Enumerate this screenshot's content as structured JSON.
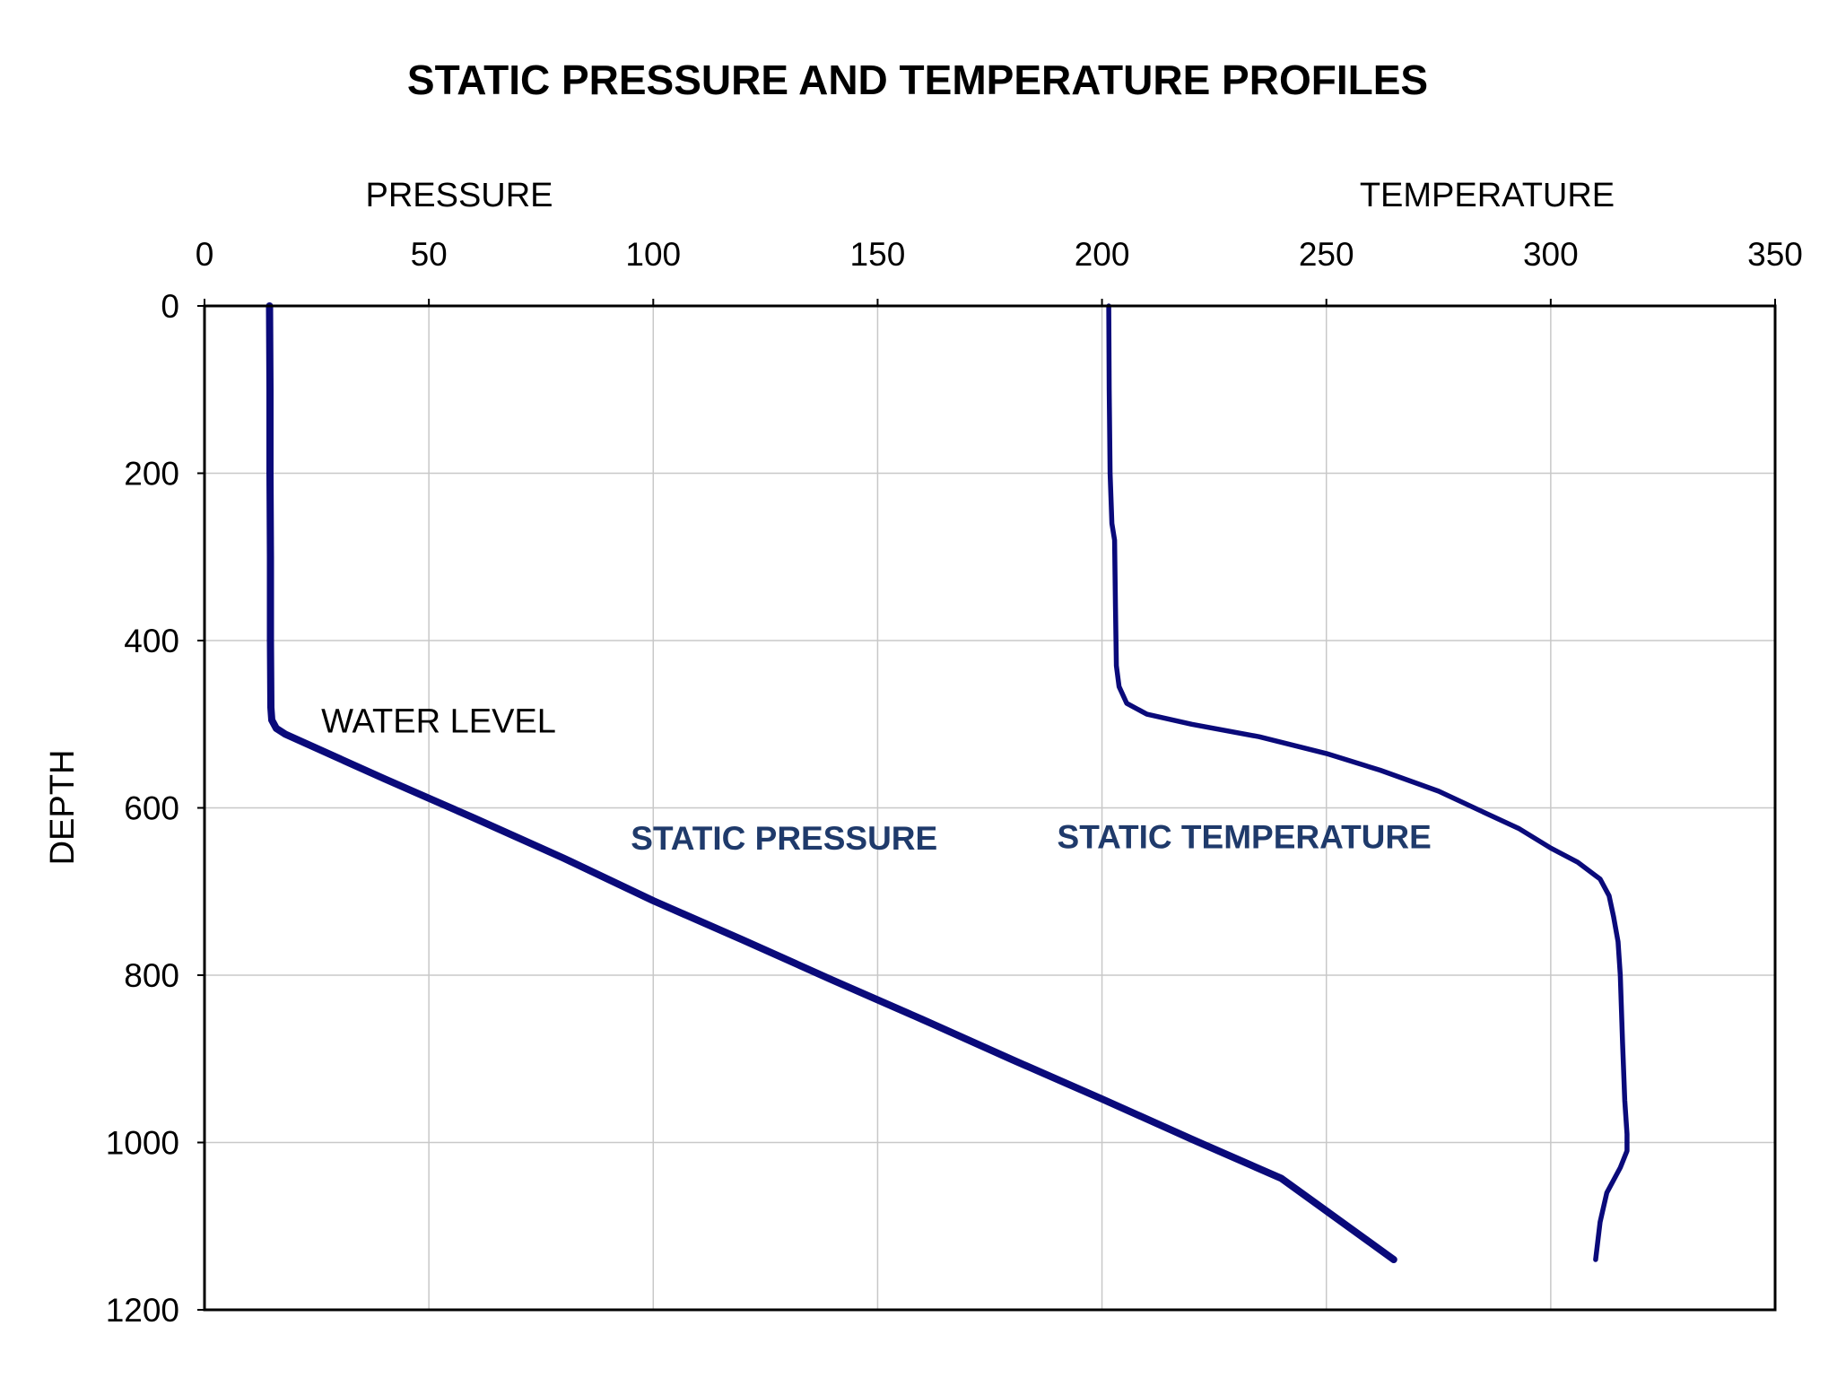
{
  "chart_data": {
    "type": "line",
    "title": "STATIC PRESSURE AND TEMPERATURE PROFILES",
    "xlabel_left": "PRESSURE",
    "xlabel_right": "TEMPERATURE",
    "ylabel": "DEPTH",
    "xlim": [
      0,
      350
    ],
    "ylim": [
      0,
      1200
    ],
    "y_inverted": true,
    "x_axis_position": "top",
    "x_ticks": [
      "0",
      "50",
      "100",
      "150",
      "200",
      "250",
      "300",
      "350"
    ],
    "x_tick_values": [
      0,
      50,
      100,
      150,
      200,
      250,
      300,
      350
    ],
    "y_ticks": [
      "0",
      "200",
      "400",
      "600",
      "800",
      "1000",
      "1200"
    ],
    "y_tick_values": [
      0,
      200,
      400,
      600,
      800,
      1000,
      1200
    ],
    "grid": true,
    "annotations": [
      {
        "text": "WATER LEVEL",
        "x": 26,
        "y": 510
      }
    ],
    "series": [
      {
        "name": "STATIC PRESSURE",
        "label_position": [
          95,
          650
        ],
        "color": "#0a0a7a",
        "points": [
          [
            14.5,
            0
          ],
          [
            14.6,
            100
          ],
          [
            14.6,
            200
          ],
          [
            14.7,
            300
          ],
          [
            14.7,
            400
          ],
          [
            14.8,
            480
          ],
          [
            15.0,
            495
          ],
          [
            16.0,
            505
          ],
          [
            18.0,
            512
          ],
          [
            40,
            565
          ],
          [
            60,
            612
          ],
          [
            80,
            660
          ],
          [
            100,
            711
          ],
          [
            120,
            758
          ],
          [
            140,
            806
          ],
          [
            160,
            853
          ],
          [
            180,
            901
          ],
          [
            200,
            948
          ],
          [
            220,
            996
          ],
          [
            240,
            1043
          ],
          [
            265,
            1140
          ]
        ]
      },
      {
        "name": "STATIC TEMPERATURE",
        "label_position": [
          190,
          648
        ],
        "color": "#0a0a7a",
        "points": [
          [
            201.5,
            0
          ],
          [
            201.6,
            100
          ],
          [
            201.8,
            200
          ],
          [
            202.2,
            260
          ],
          [
            202.8,
            280
          ],
          [
            203.0,
            360
          ],
          [
            203.2,
            430
          ],
          [
            203.8,
            455
          ],
          [
            205.5,
            475
          ],
          [
            210,
            488
          ],
          [
            220,
            500
          ],
          [
            235,
            515
          ],
          [
            250,
            535
          ],
          [
            262,
            555
          ],
          [
            275,
            580
          ],
          [
            285,
            605
          ],
          [
            293,
            625
          ],
          [
            300,
            648
          ],
          [
            306,
            665
          ],
          [
            311,
            685
          ],
          [
            313,
            705
          ],
          [
            314,
            730
          ],
          [
            315,
            760
          ],
          [
            315.5,
            800
          ],
          [
            316,
            880
          ],
          [
            316.5,
            950
          ],
          [
            317,
            990
          ],
          [
            317,
            1010
          ],
          [
            315.5,
            1030
          ],
          [
            312.5,
            1060
          ],
          [
            311,
            1095
          ],
          [
            310,
            1140
          ]
        ]
      }
    ]
  }
}
